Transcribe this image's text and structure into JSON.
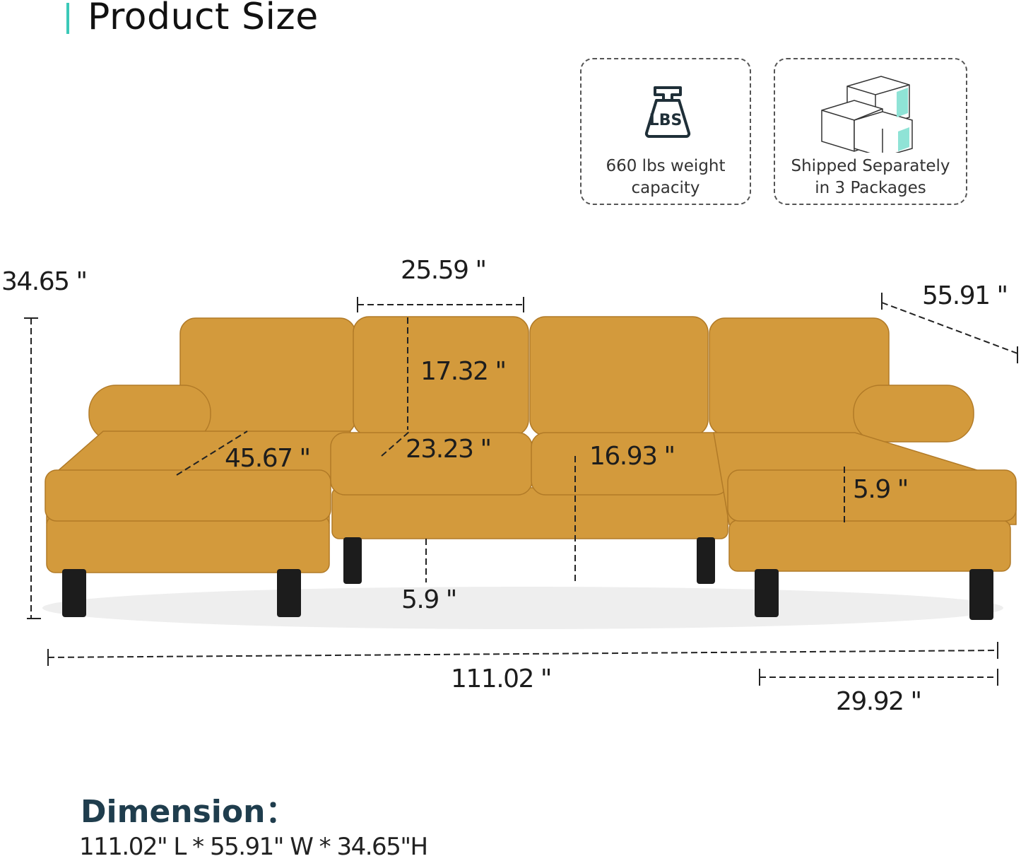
{
  "header": {
    "title": "Product Size"
  },
  "badges": [
    {
      "icon": "weight-lbs-icon",
      "icon_text": "LBS",
      "line1": "660 lbs weight",
      "line2": "capacity"
    },
    {
      "icon": "packages-icon",
      "line1": "Shipped Separately",
      "line2": "in 3 Packages"
    }
  ],
  "dimensions": {
    "height_total": "34.65 \"",
    "cushion_width": "25.59 \"",
    "depth_total": "55.91 \"",
    "back_height": "17.32 \"",
    "chaise_length": "45.67 \"",
    "seat_depth": "23.23 \"",
    "seat_height": "16.93 \"",
    "cushion_thickness": "5.9 \"",
    "leg_height": "5.9 \"",
    "length_total": "111.02 \"",
    "chaise_width": "29.92 \""
  },
  "footer": {
    "label": "Dimension：",
    "value": "111.02\" L * 55.91\" W * 34.65\"H"
  },
  "colors": {
    "accent": "#3cc9b8",
    "sofa": "#d39a3c",
    "heading": "#1f3d4d"
  }
}
